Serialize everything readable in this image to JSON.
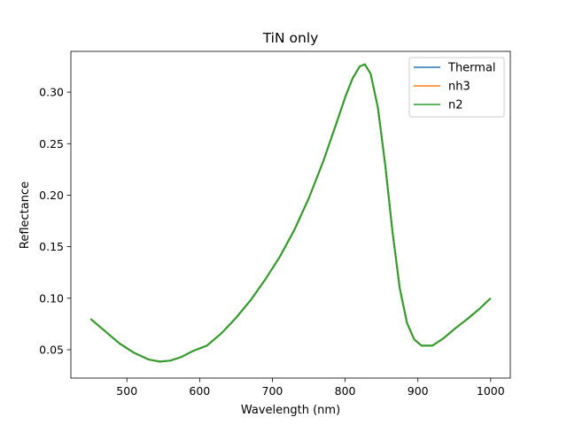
{
  "chart_data": {
    "type": "line",
    "title": "TiN only",
    "xlabel": "Wavelength (nm)",
    "ylabel": "Reflectance",
    "xlim": [
      423,
      1027
    ],
    "ylim": [
      0.0225,
      0.3396
    ],
    "xticks": [
      500,
      600,
      700,
      800,
      900,
      1000
    ],
    "yticks": [
      0.05,
      0.1,
      0.15,
      0.2,
      0.25,
      0.3
    ],
    "ytick_labels": [
      "0.05",
      "0.10",
      "0.15",
      "0.20",
      "0.25",
      "0.30"
    ],
    "grid": false,
    "legend_position": "top-right",
    "x": [
      450,
      470,
      490,
      510,
      530,
      545,
      560,
      575,
      590,
      610,
      630,
      650,
      670,
      690,
      710,
      730,
      750,
      770,
      790,
      800,
      810,
      820,
      827,
      835,
      845,
      855,
      865,
      875,
      885,
      895,
      905,
      920,
      935,
      950,
      970,
      985,
      1000
    ],
    "series": [
      {
        "name": "Thermal",
        "color": "#1f77b4",
        "values": [
          0.08,
          0.068,
          0.056,
          0.047,
          0.0405,
          0.0385,
          0.0395,
          0.043,
          0.0485,
          0.054,
          0.066,
          0.081,
          0.098,
          0.118,
          0.14,
          0.166,
          0.197,
          0.233,
          0.274,
          0.295,
          0.313,
          0.325,
          0.327,
          0.318,
          0.285,
          0.23,
          0.165,
          0.11,
          0.076,
          0.06,
          0.054,
          0.054,
          0.061,
          0.07,
          0.081,
          0.09,
          0.1
        ]
      },
      {
        "name": "nh3",
        "color": "#ff7f0e",
        "values": [
          0.08,
          0.068,
          0.056,
          0.047,
          0.0405,
          0.0385,
          0.0395,
          0.043,
          0.0485,
          0.054,
          0.066,
          0.081,
          0.098,
          0.118,
          0.14,
          0.166,
          0.197,
          0.233,
          0.274,
          0.295,
          0.313,
          0.325,
          0.327,
          0.318,
          0.285,
          0.23,
          0.165,
          0.11,
          0.076,
          0.06,
          0.054,
          0.054,
          0.061,
          0.07,
          0.081,
          0.09,
          0.1
        ]
      },
      {
        "name": "n2",
        "color": "#2ca02c",
        "values": [
          0.08,
          0.068,
          0.056,
          0.047,
          0.0405,
          0.0385,
          0.0395,
          0.043,
          0.0485,
          0.054,
          0.066,
          0.081,
          0.098,
          0.118,
          0.14,
          0.166,
          0.197,
          0.233,
          0.274,
          0.295,
          0.313,
          0.325,
          0.327,
          0.318,
          0.285,
          0.23,
          0.165,
          0.11,
          0.076,
          0.06,
          0.054,
          0.054,
          0.061,
          0.07,
          0.081,
          0.09,
          0.1
        ]
      }
    ]
  }
}
